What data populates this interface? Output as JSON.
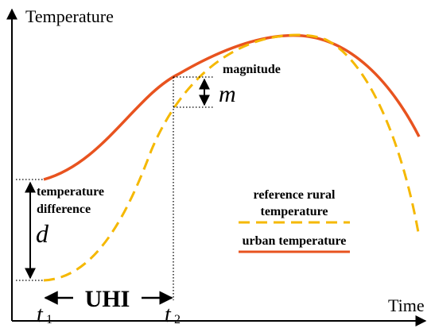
{
  "axes": {
    "y_label": "Temperature",
    "x_label": "Time"
  },
  "annotations": {
    "magnitude": "magnitude",
    "m": "m",
    "difference": [
      "temperature",
      "difference"
    ],
    "d": "d",
    "uhi": "UHI",
    "t1": {
      "base": "t",
      "sub": "1"
    },
    "t2": {
      "base": "t",
      "sub": "2"
    }
  },
  "legend": [
    {
      "label": [
        "reference rural",
        "temperature"
      ],
      "style": "dashed",
      "color": "#f5b800"
    },
    {
      "label": [
        "urban temperature"
      ],
      "style": "solid",
      "color": "#e8531f"
    }
  ]
}
